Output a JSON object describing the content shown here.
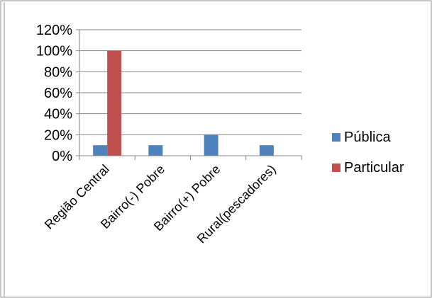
{
  "chart_data": {
    "type": "bar",
    "categories": [
      "Região Central",
      "Bairro(-) Pobre",
      "Bairro(+) Pobre",
      "Rural(pescadores)"
    ],
    "series": [
      {
        "name": "Pública",
        "color": "#4f81bd",
        "values": [
          10,
          10,
          20,
          10
        ]
      },
      {
        "name": "Particular",
        "color": "#c0504d",
        "values": [
          100,
          0,
          0,
          0
        ]
      }
    ],
    "y_ticks": [
      "0%",
      "20%",
      "40%",
      "60%",
      "80%",
      "100%",
      "120%"
    ],
    "ylim": [
      0,
      120
    ],
    "y_unit": "%",
    "grid": true,
    "legend_position": "right"
  }
}
